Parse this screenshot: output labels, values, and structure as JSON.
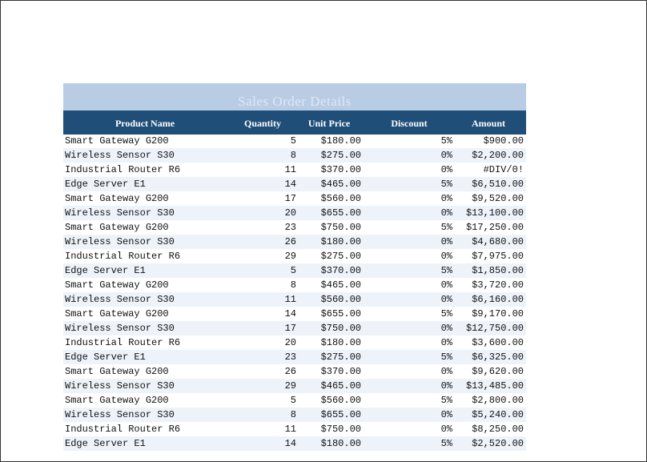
{
  "table": {
    "title": "Sales Order Details",
    "columns": [
      "Product Name",
      "Quantity",
      "Unit Price",
      "Discount",
      "Amount"
    ],
    "rows": [
      [
        "Smart Gateway G200",
        5,
        "$180.00",
        "5%",
        "$900.00"
      ],
      [
        "Wireless Sensor S30",
        8,
        "$275.00",
        "0%",
        "$2,200.00"
      ],
      [
        "Industrial Router R6",
        11,
        "$370.00",
        "0%",
        "#DIV/0!"
      ],
      [
        "Edge Server E1",
        14,
        "$465.00",
        "5%",
        "$6,510.00"
      ],
      [
        "Smart Gateway G200",
        17,
        "$560.00",
        "0%",
        "$9,520.00"
      ],
      [
        "Wireless Sensor S30",
        20,
        "$655.00",
        "0%",
        "$13,100.00"
      ],
      [
        "Smart Gateway G200",
        23,
        "$750.00",
        "5%",
        "$17,250.00"
      ],
      [
        "Wireless Sensor S30",
        26,
        "$180.00",
        "0%",
        "$4,680.00"
      ],
      [
        "Industrial Router R6",
        29,
        "$275.00",
        "0%",
        "$7,975.00"
      ],
      [
        "Edge Server E1",
        5,
        "$370.00",
        "5%",
        "$1,850.00"
      ],
      [
        "Smart Gateway G200",
        8,
        "$465.00",
        "0%",
        "$3,720.00"
      ],
      [
        "Wireless Sensor S30",
        11,
        "$560.00",
        "0%",
        "$6,160.00"
      ],
      [
        "Smart Gateway G200",
        14,
        "$655.00",
        "5%",
        "$9,170.00"
      ],
      [
        "Wireless Sensor S30",
        17,
        "$750.00",
        "0%",
        "$12,750.00"
      ],
      [
        "Industrial Router R6",
        20,
        "$180.00",
        "0%",
        "$3,600.00"
      ],
      [
        "Edge Server E1",
        23,
        "$275.00",
        "5%",
        "$6,325.00"
      ],
      [
        "Smart Gateway G200",
        26,
        "$370.00",
        "0%",
        "$9,620.00"
      ],
      [
        "Wireless Sensor S30",
        29,
        "$465.00",
        "0%",
        "$13,485.00"
      ],
      [
        "Smart Gateway G200",
        5,
        "$560.00",
        "5%",
        "$2,800.00"
      ],
      [
        "Wireless Sensor S30",
        8,
        "$655.00",
        "0%",
        "$5,240.00"
      ],
      [
        "Industrial Router R6",
        11,
        "$750.00",
        "0%",
        "$8,250.00"
      ],
      [
        "Edge Server E1",
        14,
        "$180.00",
        "5%",
        "$2,520.00"
      ]
    ]
  }
}
